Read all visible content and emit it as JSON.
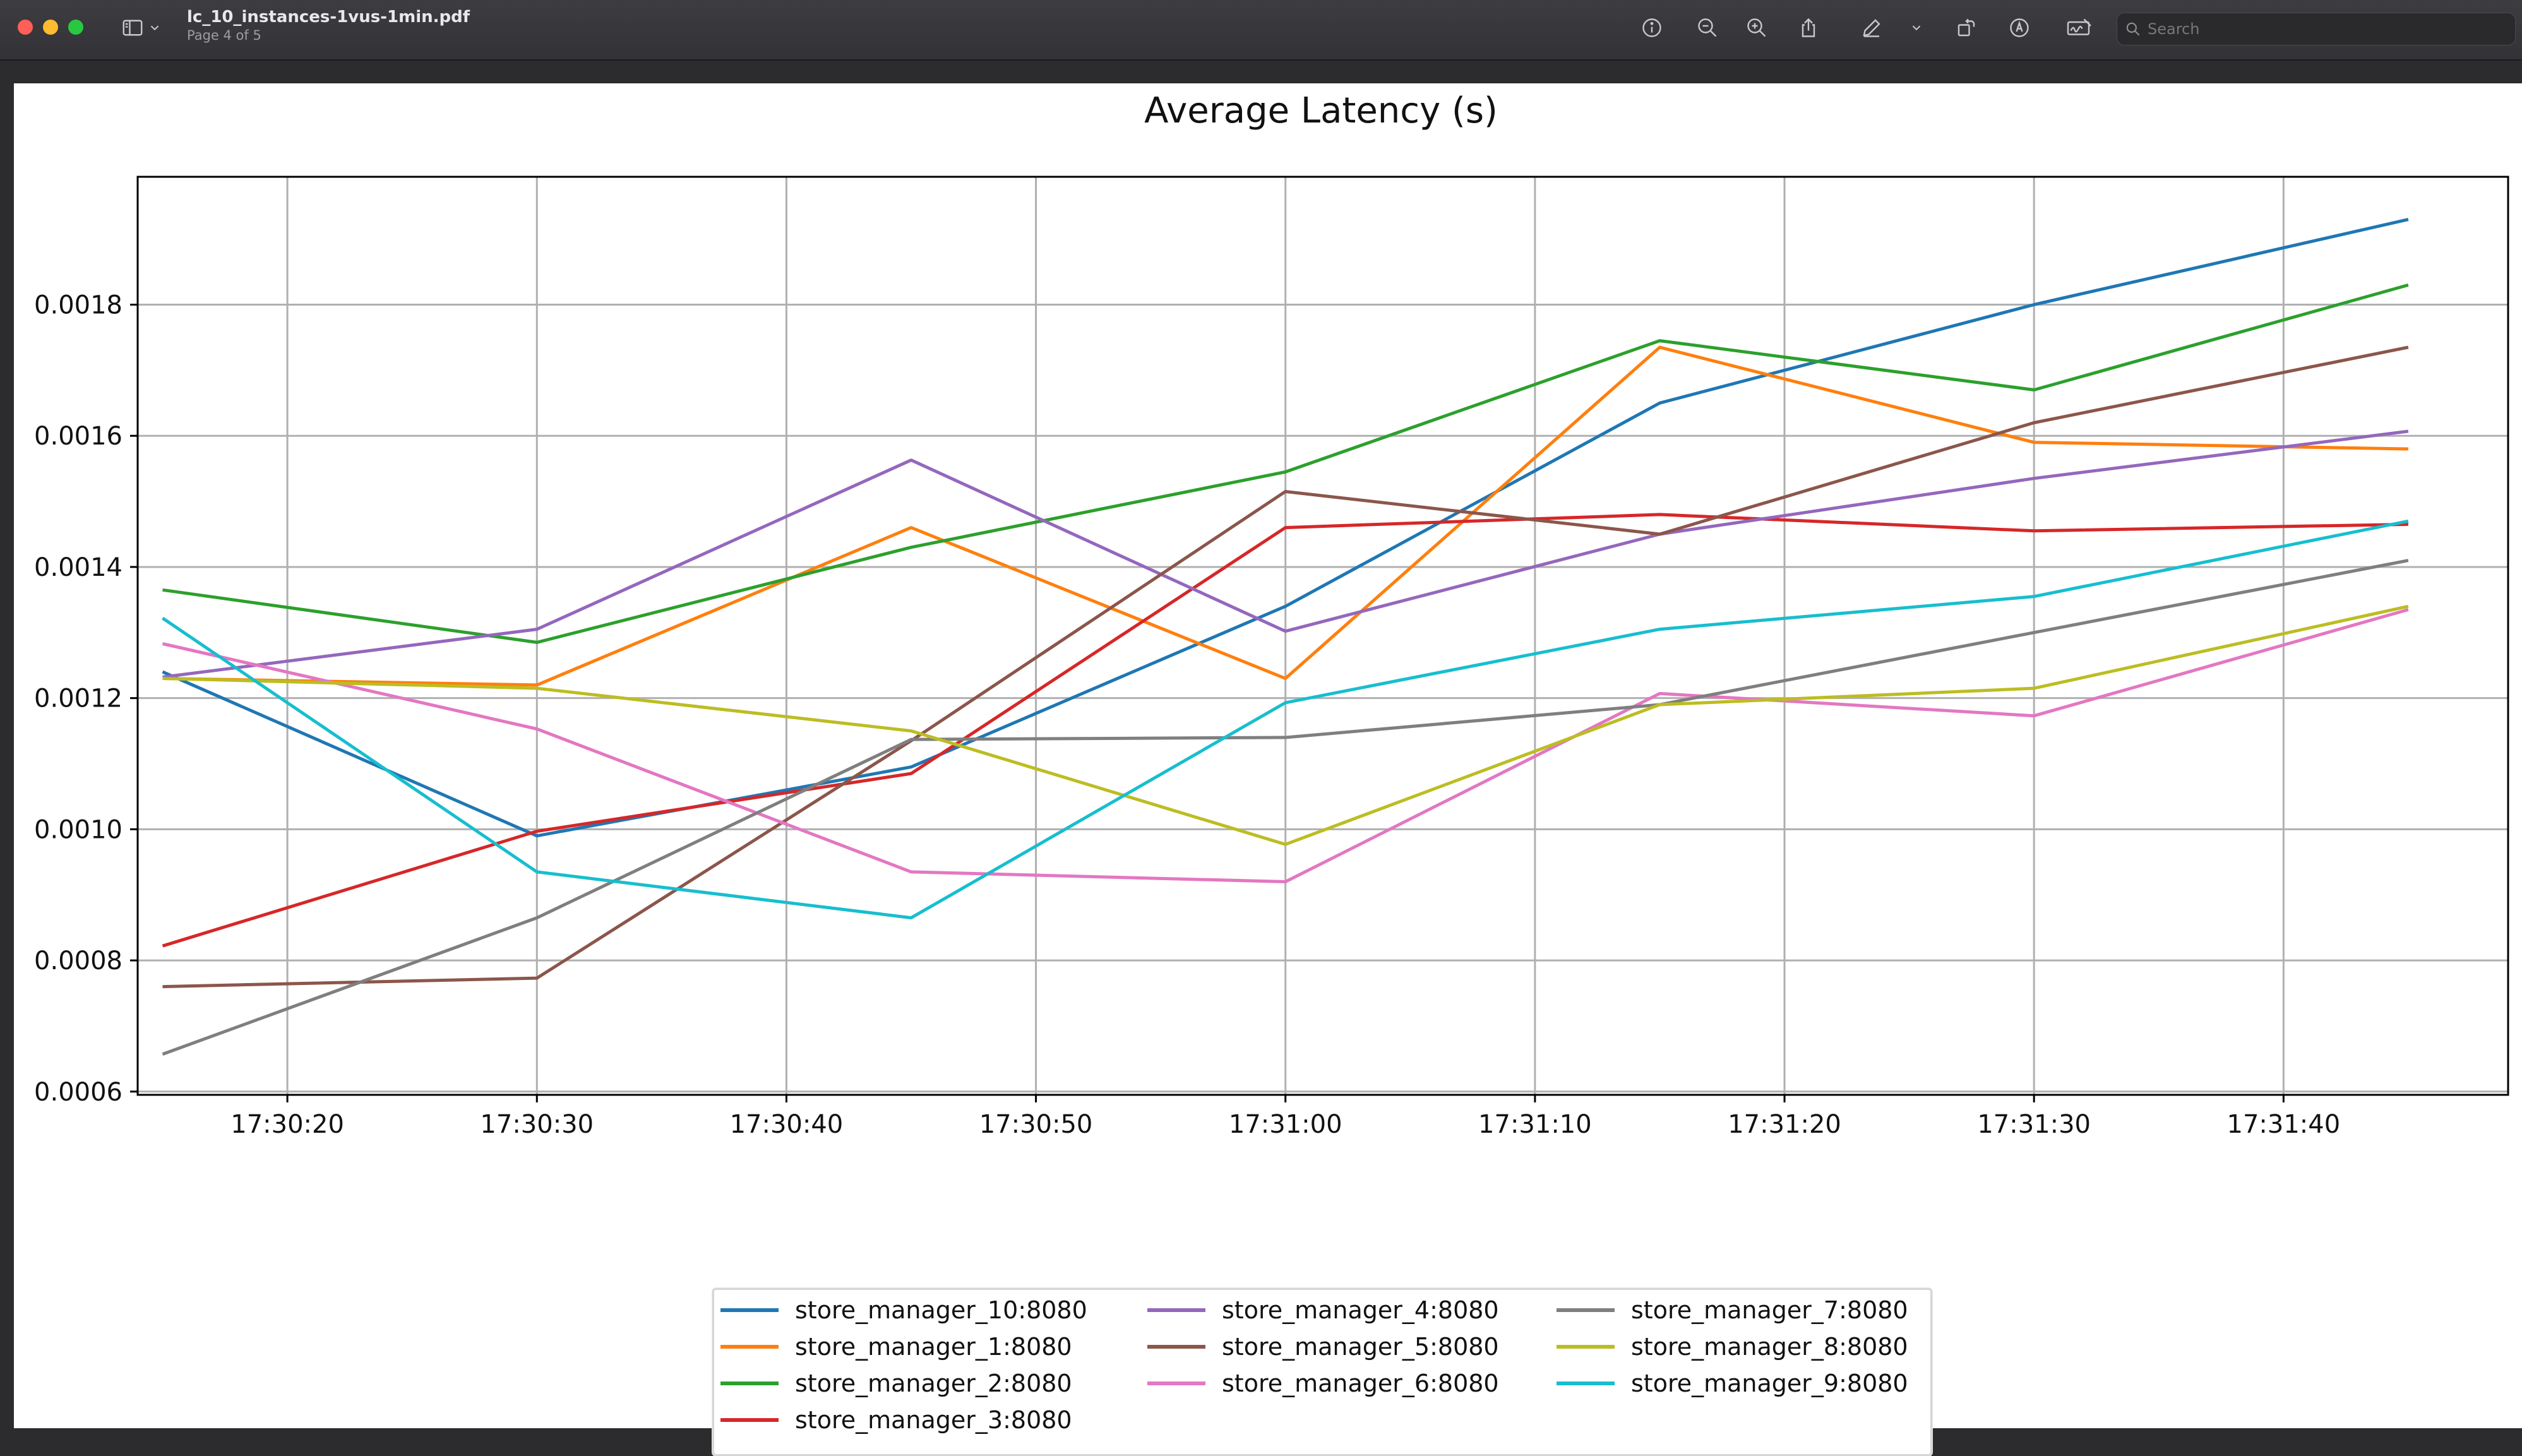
{
  "window": {
    "file_name": "lc_10_instances-1vus-1min.pdf",
    "page_info": "Page 4 of 5",
    "search_placeholder": "Search"
  },
  "toolbar": {
    "icons": [
      "sidebar-icon",
      "chevron-down-icon",
      "info-icon",
      "zoom-out-icon",
      "zoom-in-icon",
      "share-icon",
      "pen-icon",
      "chevron-down-icon",
      "rotate-icon",
      "markup-icon",
      "signature-icon",
      "search-icon"
    ]
  },
  "chart_data": {
    "type": "line",
    "title": "Average Latency (s)",
    "xlabel": "",
    "ylabel": "",
    "x": [
      "17:30:15",
      "17:30:30",
      "17:30:45",
      "17:31:00",
      "17:31:15",
      "17:31:30",
      "17:31:45"
    ],
    "x_ticks": [
      "17:30:20",
      "17:30:30",
      "17:30:40",
      "17:30:50",
      "17:31:00",
      "17:31:10",
      "17:31:20",
      "17:31:30",
      "17:31:40"
    ],
    "xlim": [
      "17:30:14",
      "17:31:49"
    ],
    "y_ticks": [
      "0.0006",
      "0.0008",
      "0.0010",
      "0.0012",
      "0.0014",
      "0.0016",
      "0.0018"
    ],
    "ylim": [
      0.000595,
      0.001995
    ],
    "grid": true,
    "legend_position": "bottom-center",
    "series": [
      {
        "name": "store_manager_10:8080",
        "color": "#1f77b4",
        "values": [
          0.00124,
          0.00099,
          0.001095,
          0.00134,
          0.00165,
          0.0018,
          0.00193
        ]
      },
      {
        "name": "store_manager_1:8080",
        "color": "#ff7f0e",
        "values": [
          0.00123,
          0.00122,
          0.00146,
          0.00123,
          0.001735,
          0.00159,
          0.00158
        ]
      },
      {
        "name": "store_manager_2:8080",
        "color": "#2ca02c",
        "values": [
          0.001365,
          0.001285,
          0.00143,
          0.001545,
          0.001745,
          0.00167,
          0.00183
        ]
      },
      {
        "name": "store_manager_3:8080",
        "color": "#d62728",
        "values": [
          0.000822,
          0.000997,
          0.001085,
          0.00146,
          0.00148,
          0.001455,
          0.001465
        ]
      },
      {
        "name": "store_manager_4:8080",
        "color": "#9467bd",
        "values": [
          0.001232,
          0.001305,
          0.001563,
          0.001302,
          0.00145,
          0.001535,
          0.001607
        ]
      },
      {
        "name": "store_manager_5:8080",
        "color": "#8c564b",
        "values": [
          0.00076,
          0.000773,
          0.001135,
          0.001515,
          0.00145,
          0.00162,
          0.001735
        ]
      },
      {
        "name": "store_manager_6:8080",
        "color": "#e377c2",
        "values": [
          0.001283,
          0.001153,
          0.000935,
          0.00092,
          0.001207,
          0.001173,
          0.001335
        ]
      },
      {
        "name": "store_manager_7:8080",
        "color": "#7f7f7f",
        "values": [
          0.000657,
          0.000865,
          0.001137,
          0.00114,
          0.00119,
          0.0013,
          0.00141
        ]
      },
      {
        "name": "store_manager_8:8080",
        "color": "#bcbd22",
        "values": [
          0.00123,
          0.001215,
          0.00115,
          0.000977,
          0.00119,
          0.001215,
          0.00134
        ]
      },
      {
        "name": "store_manager_9:8080",
        "color": "#17becf",
        "values": [
          0.001322,
          0.000935,
          0.000865,
          0.001193,
          0.001305,
          0.001355,
          0.00147
        ]
      }
    ]
  }
}
